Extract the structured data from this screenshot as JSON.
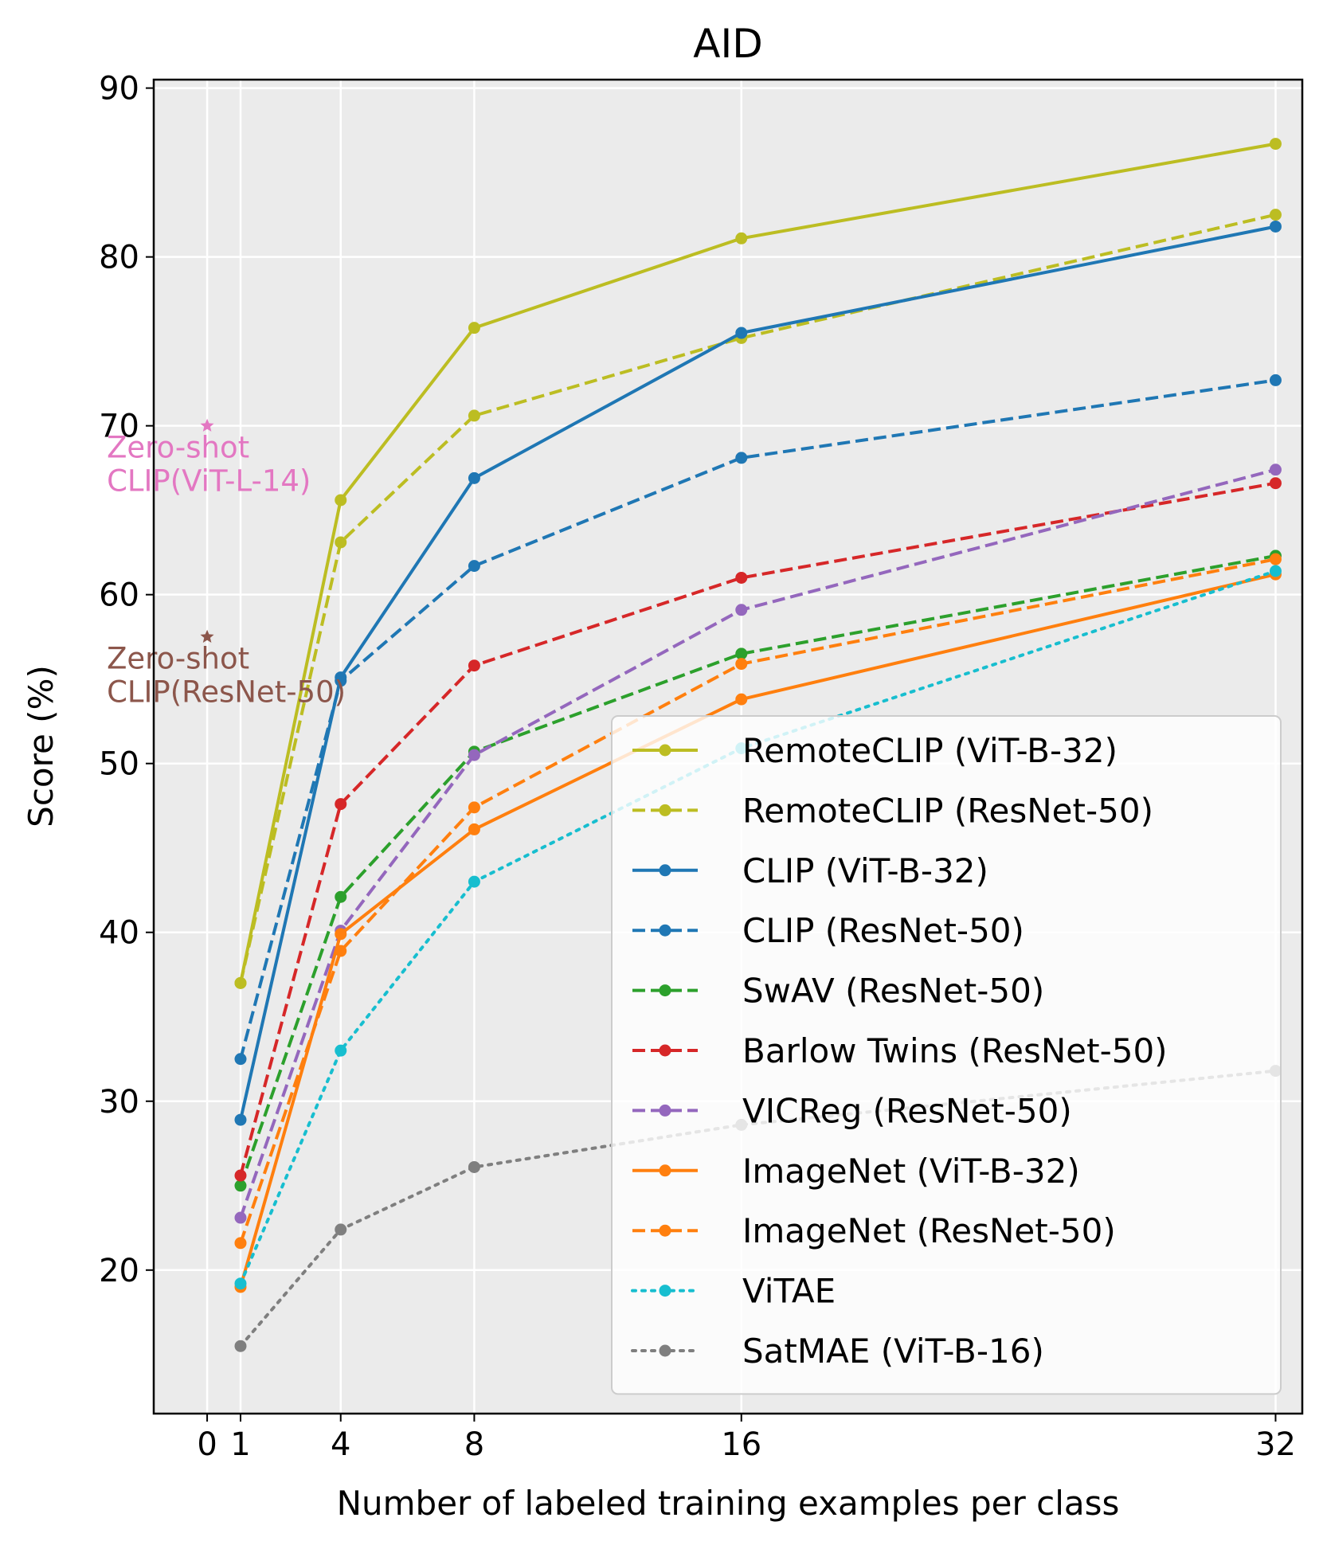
{
  "chart_data": {
    "type": "line",
    "title": "AID",
    "xlabel": "Number of labeled training examples per class",
    "ylabel": "Score (%)",
    "x_ticks": [
      0,
      1,
      4,
      8,
      16,
      32
    ],
    "y_ticks": [
      20,
      30,
      40,
      50,
      60,
      70,
      80,
      90
    ],
    "xlim": [
      -1.6,
      32.8
    ],
    "ylim": [
      11.5,
      90.5
    ],
    "grid": true,
    "legend_position": "lower-right",
    "x": [
      1,
      4,
      8,
      16,
      32
    ],
    "series": [
      {
        "name": "RemoteCLIP (ViT-B-32)",
        "color": "#bcbd22",
        "dash": "solid",
        "values": [
          37.0,
          65.6,
          75.8,
          81.1,
          86.7
        ]
      },
      {
        "name": "RemoteCLIP (ResNet-50)",
        "color": "#bcbd22",
        "dash": "dashed",
        "values": [
          37.0,
          63.1,
          70.6,
          75.2,
          82.5
        ]
      },
      {
        "name": "CLIP (ViT-B-32)",
        "color": "#1f77b4",
        "dash": "solid",
        "values": [
          28.9,
          55.1,
          66.9,
          75.5,
          81.8
        ]
      },
      {
        "name": "CLIP (ResNet-50)",
        "color": "#1f77b4",
        "dash": "dashed",
        "values": [
          32.5,
          54.9,
          61.7,
          68.1,
          72.7
        ]
      },
      {
        "name": "SwAV (ResNet-50)",
        "color": "#2ca02c",
        "dash": "dashed",
        "values": [
          25.0,
          42.1,
          50.7,
          56.5,
          62.3
        ]
      },
      {
        "name": "Barlow Twins (ResNet-50)",
        "color": "#d62728",
        "dash": "dashed",
        "values": [
          25.6,
          47.6,
          55.8,
          61.0,
          66.6
        ]
      },
      {
        "name": "VICReg (ResNet-50)",
        "color": "#9467bd",
        "dash": "dashed",
        "values": [
          23.1,
          40.1,
          50.5,
          59.1,
          67.4
        ]
      },
      {
        "name": "ImageNet (ViT-B-32)",
        "color": "#ff7f0e",
        "dash": "solid",
        "values": [
          19.0,
          39.9,
          46.1,
          53.8,
          61.2
        ]
      },
      {
        "name": "ImageNet (ResNet-50)",
        "color": "#ff7f0e",
        "dash": "dashed",
        "values": [
          21.6,
          38.9,
          47.4,
          55.9,
          62.1
        ]
      },
      {
        "name": "ViTAE",
        "color": "#17becf",
        "dash": "dotted",
        "values": [
          19.2,
          33.0,
          43.0,
          50.9,
          61.4
        ]
      },
      {
        "name": "SatMAE (ViT-B-16)",
        "color": "#7f7f7f",
        "dash": "dotted",
        "values": [
          15.5,
          22.4,
          26.1,
          28.6,
          31.8
        ]
      }
    ],
    "zero_shot": [
      {
        "label_line1": "Zero-shot",
        "label_line2": "CLIP(ViT-L-14)",
        "x": 0,
        "y": 70.0,
        "color": "#e377c2"
      },
      {
        "label_line1": "Zero-shot",
        "label_line2": "CLIP(ResNet-50)",
        "x": 0,
        "y": 57.5,
        "color": "#8c564b"
      }
    ]
  }
}
